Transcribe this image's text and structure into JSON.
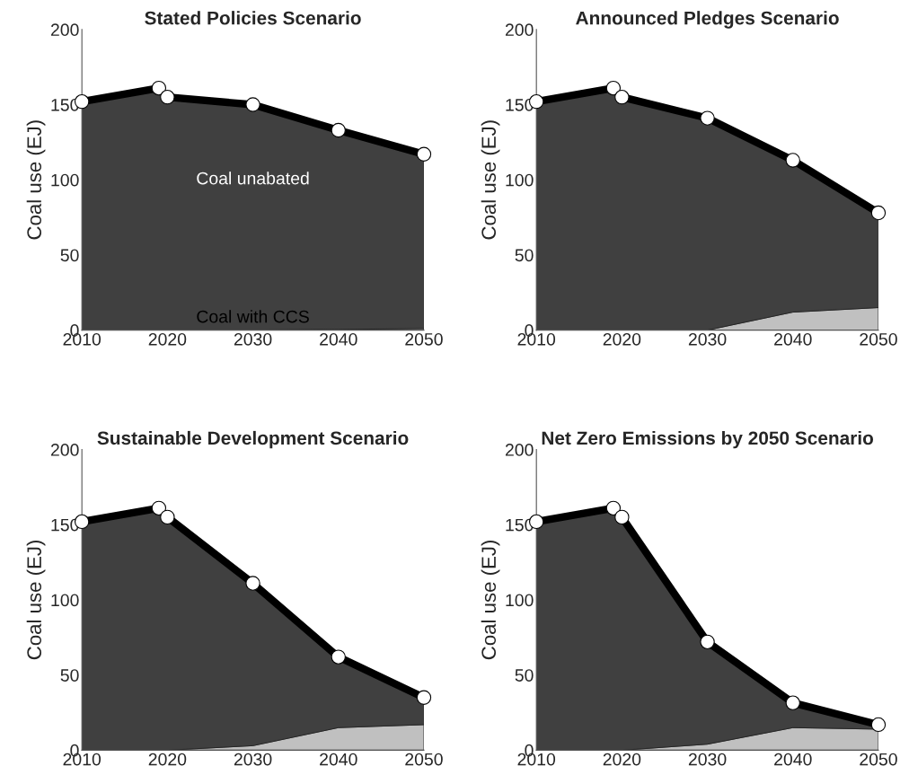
{
  "chart_data": [
    {
      "type": "area",
      "stacked": true,
      "title": "Stated Policies Scenario",
      "ylabel": "Coal use (EJ)",
      "x": [
        2010,
        2019,
        2020,
        2030,
        2040,
        2050
      ],
      "xlim": [
        2010,
        2050
      ],
      "ylim": [
        0,
        200
      ],
      "xticks": [
        2010,
        2020,
        2030,
        2040,
        2050
      ],
      "yticks": [
        0,
        50,
        100,
        150,
        200
      ],
      "series": [
        {
          "color": "#c0c0c0",
          "values": [
            0,
            0,
            0,
            0,
            0.5,
            1
          ]
        },
        {
          "color": "#404040",
          "values": [
            152,
            161,
            155,
            150,
            132.5,
            116
          ],
          "marker": "circle"
        }
      ],
      "annotations": [
        "Coal unabated",
        "Coal with CCS"
      ]
    },
    {
      "type": "area",
      "stacked": true,
      "title": "Announced Pledges Scenario",
      "ylabel": "Coal use (EJ)",
      "x": [
        2010,
        2019,
        2020,
        2030,
        2040,
        2050
      ],
      "xlim": [
        2010,
        2050
      ],
      "ylim": [
        0,
        200
      ],
      "xticks": [
        2010,
        2020,
        2030,
        2040,
        2050
      ],
      "yticks": [
        0,
        50,
        100,
        150,
        200
      ],
      "series": [
        {
          "color": "#c0c0c0",
          "values": [
            0,
            0,
            0,
            0,
            12,
            15
          ]
        },
        {
          "color": "#404040",
          "values": [
            152,
            161,
            155,
            141,
            101,
            63
          ],
          "marker": "circle"
        }
      ]
    },
    {
      "type": "area",
      "stacked": true,
      "title": "Sustainable Development Scenario",
      "ylabel": "Coal use (EJ)",
      "x": [
        2010,
        2019,
        2020,
        2030,
        2040,
        2050
      ],
      "xlim": [
        2010,
        2050
      ],
      "ylim": [
        0,
        200
      ],
      "xticks": [
        2010,
        2020,
        2030,
        2040,
        2050
      ],
      "yticks": [
        0,
        50,
        100,
        150,
        200
      ],
      "series": [
        {
          "color": "#c0c0c0",
          "values": [
            0,
            0,
            0,
            3,
            15,
            17
          ]
        },
        {
          "color": "#404040",
          "values": [
            152,
            161,
            155,
            108,
            47,
            18
          ],
          "marker": "circle"
        }
      ]
    },
    {
      "type": "area",
      "stacked": true,
      "title": "Net Zero Emissions by 2050 Scenario",
      "ylabel": "Coal use (EJ)",
      "x": [
        2010,
        2019,
        2020,
        2030,
        2040,
        2050
      ],
      "xlim": [
        2010,
        2050
      ],
      "ylim": [
        0,
        200
      ],
      "xticks": [
        2010,
        2020,
        2030,
        2040,
        2050
      ],
      "yticks": [
        0,
        50,
        100,
        150,
        200
      ],
      "series": [
        {
          "color": "#c0c0c0",
          "values": [
            0,
            0,
            0,
            4,
            15,
            14
          ]
        },
        {
          "color": "#404040",
          "values": [
            152,
            161,
            155,
            68,
            16.5,
            3
          ],
          "marker": "circle"
        }
      ]
    }
  ]
}
